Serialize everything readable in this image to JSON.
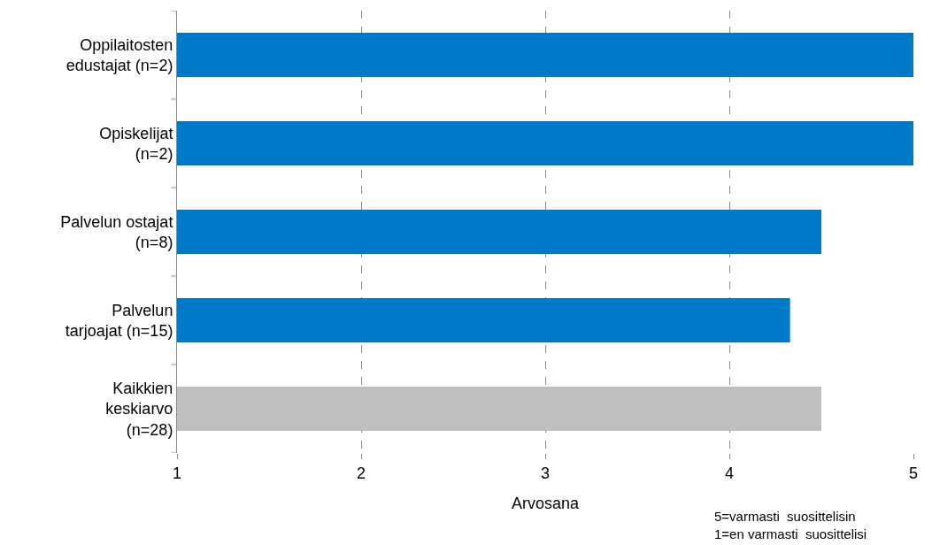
{
  "chart_data": {
    "type": "bar",
    "orientation": "horizontal",
    "categories": [
      "Oppilaitosten\nedustajat (n=2)",
      "Opiskelijat\n(n=2)",
      "Palvelun ostajat\n(n=8)",
      "Palvelun\ntarjoajat (n=15)",
      "Kaikkien\nkeskiarvo\n(n=28)"
    ],
    "values": [
      5,
      5,
      4.5,
      4.33,
      4.5
    ],
    "colors": [
      "#0078c8",
      "#0078c8",
      "#0078c8",
      "#0078c8",
      "#bfbfbf"
    ],
    "xlabel": "Arvosana",
    "xlim": [
      1,
      5
    ],
    "xticks": [
      1,
      2,
      3,
      4,
      5
    ],
    "grid": "x",
    "annotations": [
      "5=varmasti  suosittelisin\n1=en varmasti  suosittelisi"
    ]
  }
}
